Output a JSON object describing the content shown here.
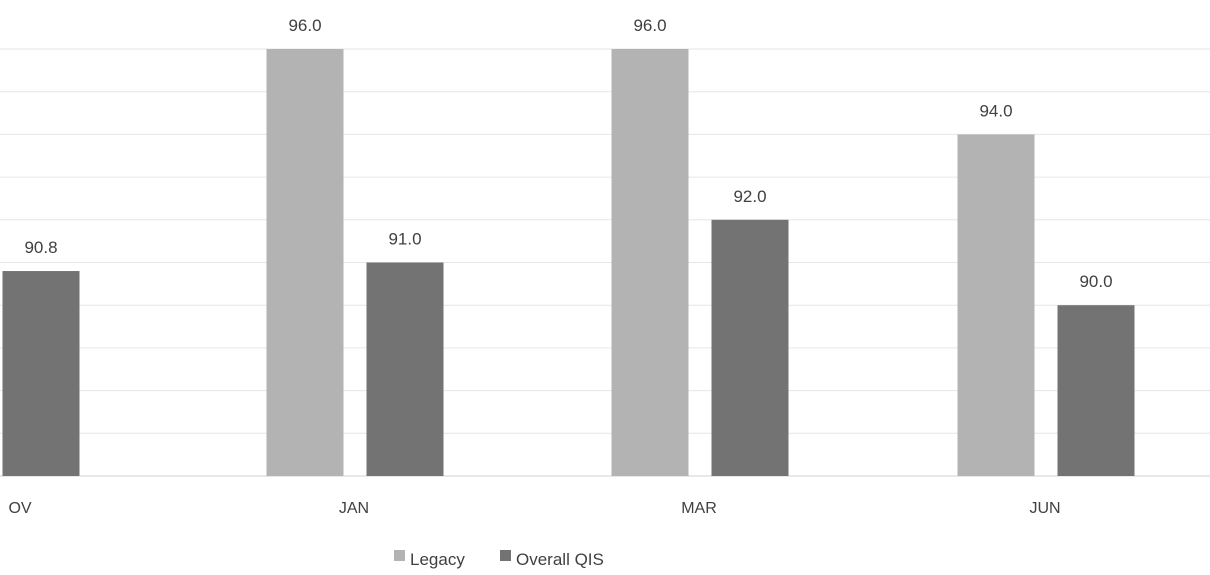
{
  "chart_data": {
    "type": "bar",
    "title": "",
    "xlabel": "",
    "ylabel": "",
    "categories": [
      "OV",
      "JAN",
      "MAR",
      "JUN"
    ],
    "series": [
      {
        "name": "Legacy",
        "color": "#b3b3b3",
        "values": [
          null,
          96.0,
          96.0,
          94.0
        ]
      },
      {
        "name": "Overall QIS",
        "color": "#737373",
        "values": [
          90.8,
          91.0,
          92.0,
          90.0
        ]
      }
    ],
    "data_labels": [
      [
        "",
        "96.0",
        "96.0",
        "94.0"
      ],
      [
        "90.8",
        "91.0",
        "92.0",
        "90.0"
      ]
    ],
    "ylim": [
      86,
      96
    ],
    "grid": true,
    "legend": "bottom-center"
  }
}
